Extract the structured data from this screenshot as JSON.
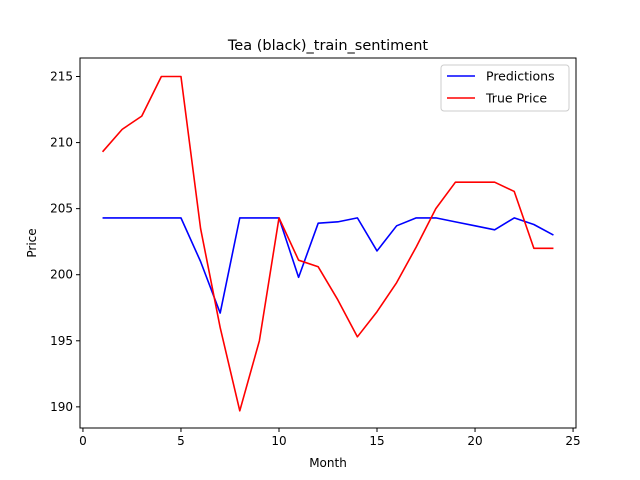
{
  "chart_data": {
    "type": "line",
    "title": "Tea (black)_train_sentiment",
    "xlabel": "Month",
    "ylabel": "Price",
    "xlim": [
      -0.15,
      25.15
    ],
    "ylim": [
      188.4,
      216.4
    ],
    "xticks": [
      0,
      5,
      10,
      15,
      20,
      25
    ],
    "yticks": [
      190,
      195,
      200,
      205,
      210,
      215
    ],
    "grid": false,
    "legend_position": "top-right",
    "x": [
      1,
      2,
      3,
      4,
      5,
      6,
      7,
      8,
      9,
      10,
      11,
      12,
      13,
      14,
      15,
      16,
      17,
      18,
      19,
      20,
      21,
      22,
      23,
      24
    ],
    "series": [
      {
        "name": "Predictions",
        "color": "#0000ff",
        "values": [
          204.3,
          204.3,
          204.3,
          204.3,
          204.3,
          201.0,
          197.1,
          204.3,
          204.3,
          204.3,
          199.8,
          203.9,
          204.0,
          204.3,
          201.8,
          203.7,
          204.3,
          204.3,
          204.0,
          203.7,
          203.4,
          204.3,
          203.8,
          203.0
        ]
      },
      {
        "name": "True Price",
        "color": "#ff0000",
        "values": [
          209.3,
          211.0,
          212.0,
          215.0,
          215.0,
          203.5,
          196.0,
          189.7,
          195.0,
          204.3,
          201.1,
          200.6,
          198.1,
          195.3,
          197.2,
          199.4,
          202.1,
          205.0,
          207.0,
          207.0,
          207.0,
          206.3,
          202.0,
          202.0
        ]
      }
    ]
  }
}
